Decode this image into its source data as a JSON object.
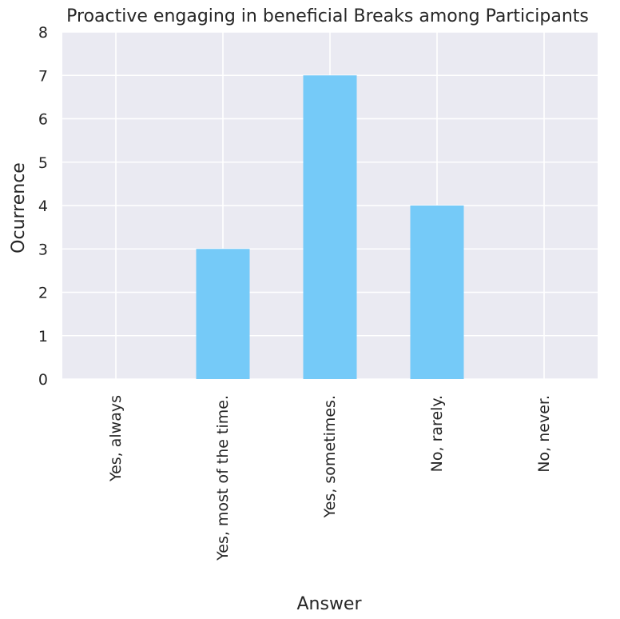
{
  "chart_data": {
    "type": "bar",
    "title": "Proactive engaging in beneficial Breaks among Participants",
    "xlabel": "Answer",
    "ylabel": "Ocurrence",
    "categories": [
      "Yes, always",
      "Yes, most of the time.",
      "Yes, sometimes.",
      "No, rarely.",
      "No, never."
    ],
    "values": [
      0,
      3,
      7,
      4,
      0
    ],
    "ylim": [
      0,
      8
    ],
    "yticks": [
      "0",
      "1",
      "2",
      "3",
      "4",
      "5",
      "6",
      "7",
      "8"
    ],
    "grid": true,
    "colors": {
      "bar": "#75CAF8",
      "plot_background": "#EAEAF2",
      "grid": "#FFFFFF",
      "text": "#262626"
    }
  }
}
